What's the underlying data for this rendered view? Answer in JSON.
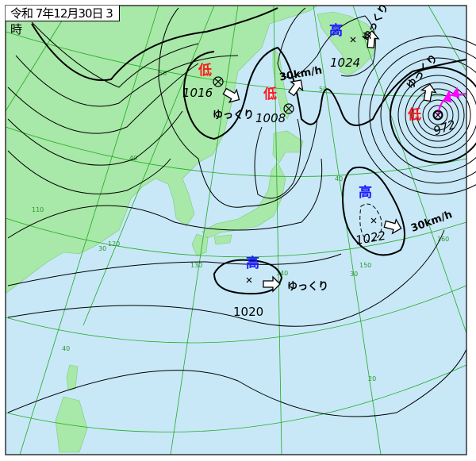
{
  "title": "令和 7年12月30日 3時",
  "colors": {
    "sea": "#c8e8f8",
    "land": "#a8e8a8",
    "grid": "#22aa22",
    "low": "#ff1a1a",
    "high": "#1a1aff",
    "front": "#ff00ff"
  },
  "systems": [
    {
      "type": "low",
      "kanji": "低",
      "pressure": "1016",
      "movement": "ゆっくり",
      "direction": "east-southeast"
    },
    {
      "type": "low",
      "kanji": "低",
      "pressure": "1008",
      "movement": "30km/h",
      "direction": "northeast"
    },
    {
      "type": "high",
      "kanji": "高",
      "pressure": "1024",
      "movement": "ゆっくり",
      "direction": "north"
    },
    {
      "type": "low",
      "kanji": "低",
      "pressure": "972",
      "movement": "ゆっくり",
      "direction": "north"
    },
    {
      "type": "high",
      "kanji": "高",
      "pressure": "1022",
      "movement": "30km/h",
      "direction": "east"
    },
    {
      "type": "high",
      "kanji": "高",
      "pressure": "1020",
      "movement": "ゆっくり",
      "direction": "east"
    }
  ],
  "grid_labels": {
    "lat": [
      "50",
      "50",
      "40",
      "40",
      "30",
      "30",
      "20",
      "40"
    ],
    "lon": [
      "110",
      "120",
      "130",
      "140",
      "150",
      "160"
    ]
  }
}
